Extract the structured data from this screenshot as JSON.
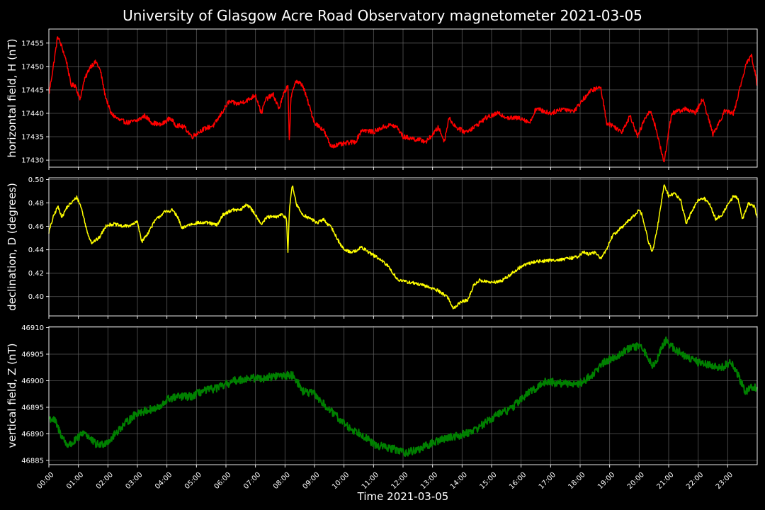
{
  "chart_data": {
    "type": "line",
    "title": "University of Glasgow Acre Road Observatory magnetometer 2021-03-05",
    "xlabel": "Time 2021-03-05",
    "x_ticks": [
      "00:00",
      "01:00",
      "02:00",
      "03:00",
      "04:00",
      "05:00",
      "06:00",
      "07:00",
      "08:00",
      "09:00",
      "10:00",
      "11:00",
      "12:00",
      "13:00",
      "14:00",
      "15:00",
      "16:00",
      "17:00",
      "18:00",
      "19:00",
      "20:00",
      "21:00",
      "22:00",
      "23:00"
    ],
    "xlim_hours": [
      0,
      24
    ],
    "grid": true,
    "panels": [
      {
        "ylabel": "horizontal field, H (nT)",
        "color": "#ff0000",
        "ylim": [
          17428.5,
          17458
        ],
        "y_ticks": [
          "17430",
          "17435",
          "17440",
          "17445",
          "17450",
          "17455"
        ],
        "y_tick_values": [
          17430,
          17435,
          17440,
          17445,
          17450,
          17455
        ],
        "noise": 0.5,
        "points": [
          [
            0,
            17444
          ],
          [
            0.15,
            17450
          ],
          [
            0.3,
            17456.5
          ],
          [
            0.45,
            17454
          ],
          [
            0.6,
            17451
          ],
          [
            0.75,
            17446
          ],
          [
            0.9,
            17446
          ],
          [
            1.05,
            17443
          ],
          [
            1.2,
            17447
          ],
          [
            1.4,
            17450
          ],
          [
            1.6,
            17451
          ],
          [
            1.75,
            17449
          ],
          [
            1.9,
            17444
          ],
          [
            2.1,
            17440
          ],
          [
            2.4,
            17438.5
          ],
          [
            2.7,
            17438
          ],
          [
            3.0,
            17438.5
          ],
          [
            3.25,
            17439.5
          ],
          [
            3.5,
            17438
          ],
          [
            3.8,
            17437.5
          ],
          [
            4.1,
            17439
          ],
          [
            4.3,
            17437.5
          ],
          [
            4.6,
            17437
          ],
          [
            4.85,
            17435
          ],
          [
            5.2,
            17436.5
          ],
          [
            5.6,
            17437.5
          ],
          [
            5.85,
            17440
          ],
          [
            6.1,
            17442.5
          ],
          [
            6.4,
            17442
          ],
          [
            6.8,
            17443
          ],
          [
            7.0,
            17444
          ],
          [
            7.2,
            17440
          ],
          [
            7.35,
            17443
          ],
          [
            7.6,
            17444
          ],
          [
            7.8,
            17441
          ],
          [
            7.95,
            17444
          ],
          [
            8.1,
            17446
          ],
          [
            8.15,
            17433.5
          ],
          [
            8.2,
            17443
          ],
          [
            8.35,
            17447
          ],
          [
            8.6,
            17446
          ],
          [
            8.8,
            17442
          ],
          [
            9.0,
            17438
          ],
          [
            9.3,
            17436.5
          ],
          [
            9.55,
            17433
          ],
          [
            10.0,
            17433.5
          ],
          [
            10.4,
            17434
          ],
          [
            10.6,
            17436.5
          ],
          [
            11.0,
            17436
          ],
          [
            11.3,
            17437
          ],
          [
            11.6,
            17437.5
          ],
          [
            11.8,
            17437
          ],
          [
            12.0,
            17435
          ],
          [
            12.4,
            17434.5
          ],
          [
            12.8,
            17434
          ],
          [
            13.2,
            17437
          ],
          [
            13.4,
            17434
          ],
          [
            13.55,
            17439
          ],
          [
            13.8,
            17437
          ],
          [
            14.1,
            17436
          ],
          [
            14.4,
            17437
          ],
          [
            14.8,
            17439
          ],
          [
            15.2,
            17440
          ],
          [
            15.6,
            17439
          ],
          [
            16.0,
            17439
          ],
          [
            16.3,
            17438
          ],
          [
            16.5,
            17441
          ],
          [
            17.0,
            17440
          ],
          [
            17.4,
            17441
          ],
          [
            17.8,
            17440.5
          ],
          [
            18.1,
            17443
          ],
          [
            18.4,
            17445
          ],
          [
            18.7,
            17445.5
          ],
          [
            18.9,
            17438
          ],
          [
            19.2,
            17437
          ],
          [
            19.4,
            17436
          ],
          [
            19.7,
            17439.5
          ],
          [
            19.95,
            17435
          ],
          [
            20.2,
            17439
          ],
          [
            20.4,
            17440.5
          ],
          [
            20.6,
            17436
          ],
          [
            20.8,
            17430.5
          ],
          [
            20.85,
            17429.5
          ],
          [
            20.95,
            17434
          ],
          [
            21.1,
            17440
          ],
          [
            21.35,
            17440.5
          ],
          [
            21.6,
            17441
          ],
          [
            21.9,
            17440
          ],
          [
            22.15,
            17443
          ],
          [
            22.3,
            17440
          ],
          [
            22.5,
            17435.5
          ],
          [
            22.7,
            17438
          ],
          [
            22.9,
            17440.5
          ],
          [
            23.2,
            17440
          ],
          [
            23.4,
            17445
          ],
          [
            23.6,
            17450
          ],
          [
            23.8,
            17452.5
          ],
          [
            23.95,
            17448
          ],
          [
            24.0,
            17445.5
          ]
        ]
      },
      {
        "ylabel": "declination, D (degrees)",
        "color": "#ffff00",
        "ylim": [
          0.3835,
          0.5015
        ],
        "y_ticks": [
          "0.40",
          "0.42",
          "0.44",
          "0.46",
          "0.48",
          "0.50"
        ],
        "y_tick_values": [
          0.4,
          0.42,
          0.44,
          0.46,
          0.48,
          0.5
        ],
        "noise": 0.0014,
        "points": [
          [
            0,
            0.455
          ],
          [
            0.15,
            0.468
          ],
          [
            0.3,
            0.477
          ],
          [
            0.45,
            0.468
          ],
          [
            0.6,
            0.476
          ],
          [
            0.8,
            0.481
          ],
          [
            0.95,
            0.485
          ],
          [
            1.1,
            0.476
          ],
          [
            1.3,
            0.455
          ],
          [
            1.45,
            0.446
          ],
          [
            1.7,
            0.45
          ],
          [
            1.95,
            0.461
          ],
          [
            2.2,
            0.462
          ],
          [
            2.5,
            0.46
          ],
          [
            2.8,
            0.461
          ],
          [
            3.0,
            0.464
          ],
          [
            3.15,
            0.447
          ],
          [
            3.35,
            0.454
          ],
          [
            3.6,
            0.465
          ],
          [
            3.9,
            0.472
          ],
          [
            4.2,
            0.474
          ],
          [
            4.4,
            0.466
          ],
          [
            4.5,
            0.458
          ],
          [
            4.7,
            0.461
          ],
          [
            5.0,
            0.463
          ],
          [
            5.4,
            0.463
          ],
          [
            5.7,
            0.461
          ],
          [
            5.9,
            0.47
          ],
          [
            6.2,
            0.474
          ],
          [
            6.5,
            0.474
          ],
          [
            6.7,
            0.479
          ],
          [
            6.85,
            0.475
          ],
          [
            7.0,
            0.47
          ],
          [
            7.2,
            0.462
          ],
          [
            7.4,
            0.468
          ],
          [
            7.7,
            0.468
          ],
          [
            7.9,
            0.47
          ],
          [
            8.05,
            0.467
          ],
          [
            8.1,
            0.438
          ],
          [
            8.15,
            0.475
          ],
          [
            8.25,
            0.495
          ],
          [
            8.4,
            0.478
          ],
          [
            8.6,
            0.47
          ],
          [
            8.9,
            0.466
          ],
          [
            9.1,
            0.463
          ],
          [
            9.3,
            0.466
          ],
          [
            9.6,
            0.458
          ],
          [
            9.8,
            0.448
          ],
          [
            10.0,
            0.44
          ],
          [
            10.3,
            0.438
          ],
          [
            10.6,
            0.442
          ],
          [
            10.9,
            0.437
          ],
          [
            11.2,
            0.432
          ],
          [
            11.5,
            0.426
          ],
          [
            11.8,
            0.415
          ],
          [
            12.0,
            0.413
          ],
          [
            12.3,
            0.412
          ],
          [
            12.6,
            0.41
          ],
          [
            12.9,
            0.408
          ],
          [
            13.2,
            0.405
          ],
          [
            13.5,
            0.4
          ],
          [
            13.7,
            0.39
          ],
          [
            14.0,
            0.396
          ],
          [
            14.2,
            0.397
          ],
          [
            14.4,
            0.41
          ],
          [
            14.6,
            0.414
          ],
          [
            15.0,
            0.412
          ],
          [
            15.3,
            0.413
          ],
          [
            15.6,
            0.418
          ],
          [
            15.9,
            0.424
          ],
          [
            16.2,
            0.428
          ],
          [
            16.5,
            0.43
          ],
          [
            17.0,
            0.431
          ],
          [
            17.5,
            0.432
          ],
          [
            17.9,
            0.434
          ],
          [
            18.1,
            0.438
          ],
          [
            18.3,
            0.436
          ],
          [
            18.5,
            0.438
          ],
          [
            18.7,
            0.432
          ],
          [
            18.9,
            0.441
          ],
          [
            19.1,
            0.452
          ],
          [
            19.4,
            0.459
          ],
          [
            19.7,
            0.466
          ],
          [
            20.0,
            0.474
          ],
          [
            20.1,
            0.47
          ],
          [
            20.3,
            0.448
          ],
          [
            20.45,
            0.438
          ],
          [
            20.6,
            0.456
          ],
          [
            20.75,
            0.48
          ],
          [
            20.85,
            0.496
          ],
          [
            21.0,
            0.486
          ],
          [
            21.2,
            0.488
          ],
          [
            21.4,
            0.483
          ],
          [
            21.6,
            0.462
          ],
          [
            21.8,
            0.474
          ],
          [
            22.0,
            0.482
          ],
          [
            22.2,
            0.484
          ],
          [
            22.4,
            0.478
          ],
          [
            22.6,
            0.466
          ],
          [
            22.8,
            0.47
          ],
          [
            23.0,
            0.478
          ],
          [
            23.2,
            0.486
          ],
          [
            23.35,
            0.484
          ],
          [
            23.5,
            0.466
          ],
          [
            23.7,
            0.48
          ],
          [
            23.9,
            0.477
          ],
          [
            24.0,
            0.468
          ]
        ]
      },
      {
        "ylabel": "vertical field, Z (nT)",
        "color": "#008000",
        "ylim": [
          46884.2,
          46910.2
        ],
        "y_ticks": [
          "46885",
          "46890",
          "46895",
          "46900",
          "46905",
          "46910"
        ],
        "y_tick_values": [
          46885,
          46890,
          46895,
          46900,
          46905,
          46910
        ],
        "noise": 0.75,
        "points": [
          [
            0,
            46893
          ],
          [
            0.2,
            46892.5
          ],
          [
            0.4,
            46890
          ],
          [
            0.6,
            46888
          ],
          [
            0.75,
            46888
          ],
          [
            0.95,
            46889
          ],
          [
            1.2,
            46890.5
          ],
          [
            1.4,
            46889
          ],
          [
            1.6,
            46888
          ],
          [
            1.8,
            46888
          ],
          [
            2.1,
            46889
          ],
          [
            2.4,
            46891
          ],
          [
            2.7,
            46892.5
          ],
          [
            3.0,
            46894
          ],
          [
            3.4,
            46894.5
          ],
          [
            3.8,
            46895
          ],
          [
            4.0,
            46896.5
          ],
          [
            4.4,
            46897
          ],
          [
            4.8,
            46897
          ],
          [
            5.2,
            46898
          ],
          [
            5.6,
            46898.5
          ],
          [
            5.9,
            46899
          ],
          [
            6.3,
            46900
          ],
          [
            6.8,
            46900.5
          ],
          [
            7.3,
            46900.5
          ],
          [
            7.8,
            46901
          ],
          [
            8.3,
            46901
          ],
          [
            8.6,
            46898
          ],
          [
            9.0,
            46897.5
          ],
          [
            9.4,
            46895
          ],
          [
            9.8,
            46893
          ],
          [
            10.2,
            46891
          ],
          [
            10.6,
            46890
          ],
          [
            11.0,
            46888
          ],
          [
            11.4,
            46887.5
          ],
          [
            11.8,
            46887
          ],
          [
            12.1,
            46886.5
          ],
          [
            12.5,
            46887
          ],
          [
            12.9,
            46888
          ],
          [
            13.3,
            46889
          ],
          [
            13.7,
            46889.5
          ],
          [
            14.1,
            46890
          ],
          [
            14.5,
            46891
          ],
          [
            14.9,
            46892.5
          ],
          [
            15.3,
            46894
          ],
          [
            15.6,
            46894.5
          ],
          [
            15.9,
            46896
          ],
          [
            16.2,
            46897.5
          ],
          [
            16.6,
            46899
          ],
          [
            16.9,
            46900
          ],
          [
            17.2,
            46899.5
          ],
          [
            17.6,
            46899.5
          ],
          [
            18.0,
            46899.5
          ],
          [
            18.4,
            46901
          ],
          [
            18.8,
            46903.5
          ],
          [
            19.2,
            46904.5
          ],
          [
            19.6,
            46906
          ],
          [
            20.0,
            46906.5
          ],
          [
            20.25,
            46905
          ],
          [
            20.5,
            46902.5
          ],
          [
            20.7,
            46905.5
          ],
          [
            20.9,
            46907.5
          ],
          [
            21.2,
            46906
          ],
          [
            21.6,
            46904.5
          ],
          [
            22.0,
            46903.5
          ],
          [
            22.4,
            46903
          ],
          [
            22.8,
            46902.5
          ],
          [
            23.1,
            46903.5
          ],
          [
            23.35,
            46901
          ],
          [
            23.6,
            46898
          ],
          [
            23.85,
            46899
          ],
          [
            24.0,
            46898.5
          ]
        ]
      }
    ]
  }
}
